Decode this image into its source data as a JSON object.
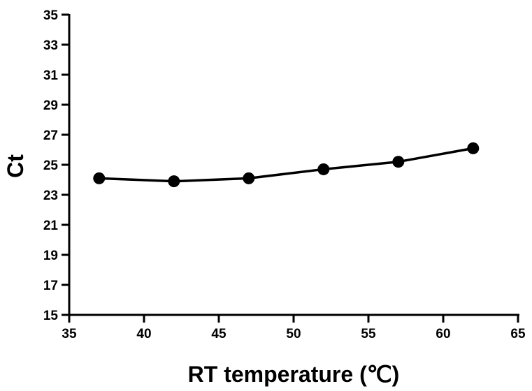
{
  "chart_data": {
    "type": "line",
    "title": "",
    "xlabel": "RT temperature (℃)",
    "ylabel": "Ct",
    "xlim": [
      35,
      65
    ],
    "ylim": [
      15,
      35
    ],
    "xticks": [
      "35",
      "40",
      "45",
      "50",
      "55",
      "60",
      "65"
    ],
    "yticks": [
      "15",
      "17",
      "19",
      "21",
      "23",
      "25",
      "27",
      "29",
      "31",
      "33",
      "35"
    ],
    "grid": false,
    "legend": "none",
    "series": [
      {
        "x": [
          37,
          42,
          47,
          52,
          57,
          62
        ],
        "y": [
          24.1,
          23.9,
          24.1,
          24.7,
          25.2,
          26.1
        ],
        "color": "#000000",
        "marker": "circle"
      }
    ]
  }
}
